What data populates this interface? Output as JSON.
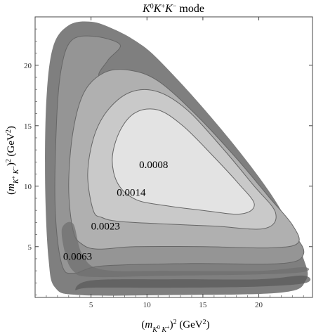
{
  "chart_data": {
    "type": "contour",
    "title": "K⁰K⁺K⁻ mode",
    "xlabel": "(m_{K⁰K⁺})² (GeV²)",
    "ylabel": "(m_{K⁺K⁻})² (GeV²)",
    "xlim": [
      0,
      24.8
    ],
    "ylim": [
      0.8,
      24
    ],
    "x_ticks": [
      5,
      10,
      15,
      20
    ],
    "y_ticks": [
      5,
      10,
      15,
      20
    ],
    "contour_levels": [
      {
        "label": "0.0063",
        "x": 2.5,
        "y": 3.9
      },
      {
        "label": "0.0023",
        "x": 5.0,
        "y": 6.4
      },
      {
        "label": "0.0014",
        "x": 7.3,
        "y": 9.2
      },
      {
        "label": "0.0008",
        "x": 9.3,
        "y": 11.5
      }
    ],
    "colors": {
      "outer": "#7f7f7f",
      "band1": "#959595",
      "band2": "#b0b0b0",
      "band3": "#c9c9c9",
      "inner": "#e3e3e3",
      "dark_band": "#5a5a5a",
      "contour_line": "#666666"
    }
  }
}
